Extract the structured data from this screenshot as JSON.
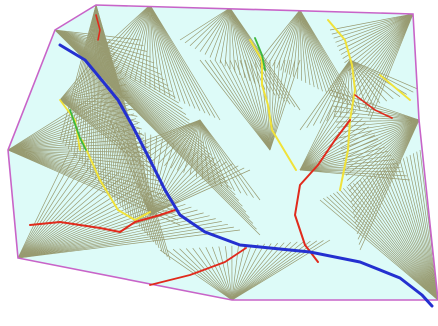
{
  "figure": {
    "description_visible_text": "",
    "colors": {
      "background": "#ffffff",
      "fill": "#ddfbf8",
      "hatch": "#8c8a5a",
      "boundary": "#c864c8",
      "river_main": "#2430d0",
      "river_red": "#e02a1c",
      "river_yellow": "#f0e23a",
      "river_green": "#3cb83c"
    }
  }
}
